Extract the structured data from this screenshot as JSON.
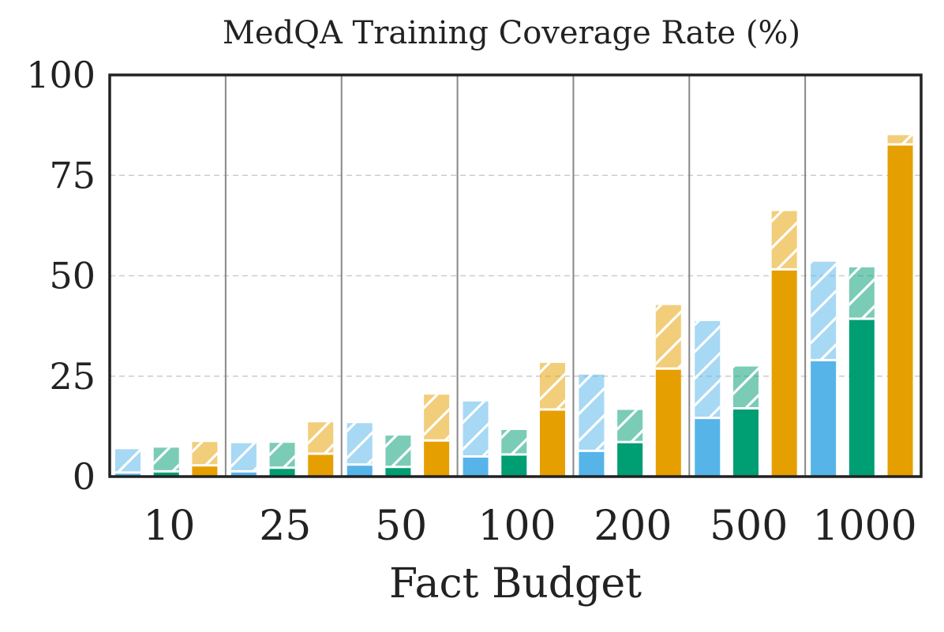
{
  "chart_data": {
    "type": "bar",
    "title": "MedQA Training Coverage Rate (%)",
    "xlabel": "Fact Budget",
    "ylabel": "",
    "ylim": [
      0,
      100
    ],
    "yticks": [
      0,
      25,
      50,
      75,
      100
    ],
    "categories": [
      "10",
      "25",
      "50",
      "100",
      "200",
      "500",
      "1000"
    ],
    "colors": {
      "blue": "#56B4E9",
      "green": "#009E73",
      "orange": "#E69F00",
      "grid": "#cccccc",
      "separator": "#888888",
      "axis": "#222222"
    },
    "series": [
      {
        "name": "blue",
        "color": "#56B4E9",
        "base_values": [
          1.0,
          1.3,
          3.0,
          5.0,
          6.4,
          14.6,
          29.0
        ],
        "total_values": [
          6.8,
          8.3,
          13.3,
          18.7,
          25.4,
          38.7,
          53.5
        ]
      },
      {
        "name": "green",
        "color": "#009E73",
        "base_values": [
          1.3,
          2.2,
          2.4,
          5.5,
          8.6,
          17.0,
          39.3
        ],
        "total_values": [
          7.2,
          8.4,
          10.2,
          11.6,
          16.6,
          27.4,
          52.1
        ]
      },
      {
        "name": "orange",
        "color": "#E69F00",
        "base_values": [
          2.8,
          5.7,
          9.0,
          16.7,
          26.9,
          51.6,
          82.7
        ],
        "total_values": [
          8.6,
          13.5,
          20.4,
          28.3,
          42.7,
          66.1,
          85.0
        ]
      }
    ]
  }
}
